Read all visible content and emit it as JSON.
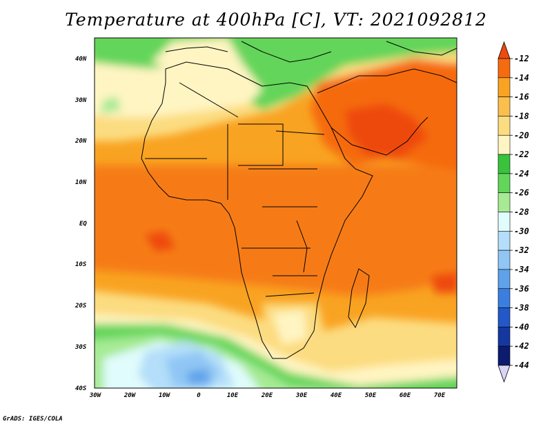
{
  "title": "Temperature at 400hPa [C], VT: 2021092812",
  "credit": "GrADS: IGES/COLA",
  "map": {
    "lat_labels": [
      "40N",
      "30N",
      "20N",
      "10N",
      "EQ",
      "10S",
      "20S",
      "30S",
      "40S"
    ],
    "lon_labels": [
      "30W",
      "20W",
      "10W",
      "0",
      "10E",
      "20E",
      "30E",
      "40E",
      "50E",
      "60E",
      "70E"
    ]
  },
  "colorbar": {
    "labels": [
      "-12",
      "-14",
      "-16",
      "-18",
      "-20",
      "-22",
      "-24",
      "-26",
      "-28",
      "-30",
      "-32",
      "-34",
      "-36",
      "-38",
      "-40",
      "-42",
      "-44"
    ],
    "colors": {
      "c-12": "#ee4a10",
      "c-14": "#f56b0f",
      "c-16": "#f9a322",
      "c-18": "#fbbf4d",
      "c-20": "#fcdc80",
      "c-22": "#fff5c2",
      "c-24": "#39c23c",
      "c-26": "#63d55a",
      "c-28": "#a6ea94",
      "c-30": "#e0fcfc",
      "c-32": "#b4def9",
      "c-34": "#8fc6f4",
      "c-36": "#5fa2ea",
      "c-38": "#3a7fdf",
      "c-40": "#2258c8",
      "c-42": "#1438a0",
      "c-44": "#0c1b6e"
    }
  }
}
